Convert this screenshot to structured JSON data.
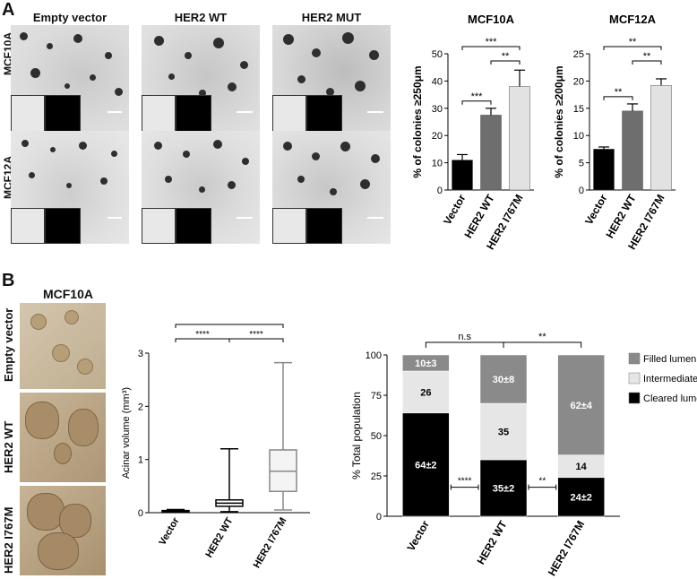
{
  "panel_a": {
    "letter": "A",
    "columns": [
      "Empty vector",
      "HER2 WT",
      "HER2 MUT"
    ],
    "rows": [
      "MCF10A",
      "MCF12A"
    ]
  },
  "panel_b": {
    "letter": "B",
    "title": "MCF10A",
    "rows": [
      "Empty vector",
      "HER2 WT",
      "HER2 I767M"
    ]
  },
  "chart_data": [
    {
      "type": "bar",
      "title": "MCF10A",
      "ylabel": "% of colonies ≥250μm",
      "categories": [
        "Vector",
        "HER2 WT",
        "HER2 I767M"
      ],
      "values": [
        11,
        27.5,
        38
      ],
      "errors": [
        2,
        2.5,
        6
      ],
      "colors": [
        "#000000",
        "#6e6e6e",
        "#e2e2e2"
      ],
      "ylim": [
        0,
        50
      ],
      "yticks": [
        0,
        10,
        20,
        30,
        40,
        50
      ],
      "significance": [
        {
          "from": 0,
          "to": 1,
          "label": "***"
        },
        {
          "from": 1,
          "to": 2,
          "label": "**"
        },
        {
          "from": 0,
          "to": 2,
          "label": "***"
        }
      ]
    },
    {
      "type": "bar",
      "title": "MCF12A",
      "ylabel": "% of colonies ≥200μm",
      "categories": [
        "Vector",
        "HER2 WT",
        "HER2 I767M"
      ],
      "values": [
        7.5,
        14.5,
        19.2
      ],
      "errors": [
        0.4,
        1.3,
        1.2
      ],
      "colors": [
        "#000000",
        "#6e6e6e",
        "#e2e2e2"
      ],
      "ylim": [
        0,
        25
      ],
      "yticks": [
        0,
        5,
        10,
        15,
        20,
        25
      ],
      "significance": [
        {
          "from": 0,
          "to": 1,
          "label": "**"
        },
        {
          "from": 1,
          "to": 2,
          "label": "**"
        },
        {
          "from": 0,
          "to": 2,
          "label": "**"
        }
      ]
    },
    {
      "type": "box",
      "ylabel": "Acinar volume (mm³)",
      "categories": [
        "Vector",
        "HER2 WT",
        "HER2 I767M"
      ],
      "boxes": [
        {
          "min": 0.01,
          "q1": 0.02,
          "median": 0.03,
          "q3": 0.04,
          "max": 0.06
        },
        {
          "min": 0.02,
          "q1": 0.12,
          "median": 0.18,
          "q3": 0.24,
          "max": 1.2
        },
        {
          "min": 0.05,
          "q1": 0.4,
          "median": 0.78,
          "q3": 1.18,
          "max": 2.82
        }
      ],
      "ylim": [
        0,
        3
      ],
      "yticks": [
        0,
        1,
        2,
        3
      ],
      "significance": [
        {
          "from": 0,
          "to": 1,
          "label": "****"
        },
        {
          "from": 1,
          "to": 2,
          "label": "****"
        },
        {
          "from": 0,
          "to": 2,
          "label": "****"
        }
      ]
    },
    {
      "type": "stacked-bar",
      "ylabel": "% Total population",
      "categories": [
        "Vector",
        "HER2 WT",
        "HER2 I767M"
      ],
      "series": [
        {
          "name": "Cleared lumen",
          "color": "#000000",
          "values": [
            64,
            35,
            24
          ],
          "labels": [
            "64±2",
            "35±2",
            "24±2"
          ]
        },
        {
          "name": "Intermediate",
          "color": "#e6e6e6",
          "values": [
            26,
            35,
            14
          ],
          "labels": [
            "26",
            "35",
            "14"
          ]
        },
        {
          "name": "Filled lumen",
          "color": "#8a8a8a",
          "values": [
            10,
            30,
            62
          ],
          "labels": [
            "10±3",
            "30±8",
            "62±4"
          ]
        }
      ],
      "ylim": [
        0,
        100
      ],
      "yticks": [
        0,
        25,
        50,
        75,
        100
      ],
      "legend_position": "right",
      "top_significance": [
        {
          "from": 0,
          "to": 1,
          "label": "n.s"
        },
        {
          "from": 1,
          "to": 2,
          "label": "**"
        }
      ],
      "gap_significance": [
        "****",
        "**"
      ]
    }
  ]
}
